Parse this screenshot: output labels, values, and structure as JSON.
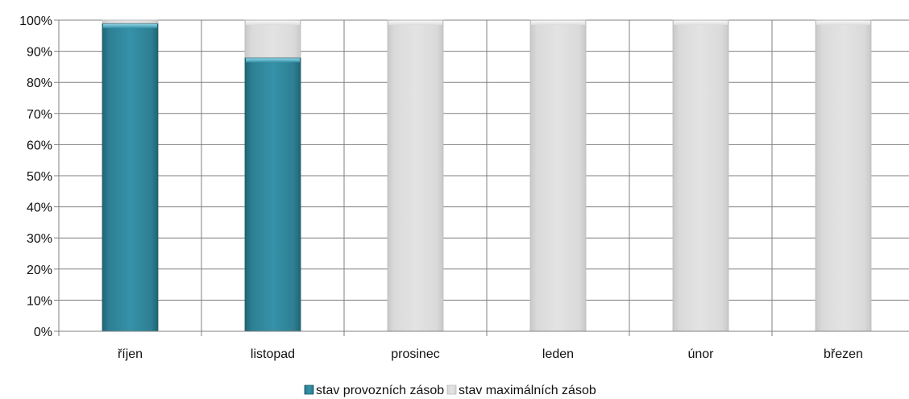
{
  "chart_data": {
    "type": "bar",
    "stacked": true,
    "categories": [
      "říjen",
      "listopad",
      "prosinec",
      "leden",
      "únor",
      "březen"
    ],
    "series": [
      {
        "name": "stav provozních zásob",
        "values": [
          99,
          88,
          0,
          0,
          0,
          0
        ]
      },
      {
        "name": "stav maximálních zásob",
        "values": [
          1,
          12,
          100,
          100,
          100,
          100
        ]
      }
    ],
    "ylim": [
      0,
      100
    ],
    "yticks": [
      "0%",
      "10%",
      "20%",
      "30%",
      "40%",
      "50%",
      "60%",
      "70%",
      "80%",
      "90%",
      "100%"
    ],
    "grid": true,
    "legend_position": "bottom",
    "colors": {
      "stav provozních zásob": "#31859c",
      "stav maximálních zásob": "#d9d9d9"
    }
  }
}
